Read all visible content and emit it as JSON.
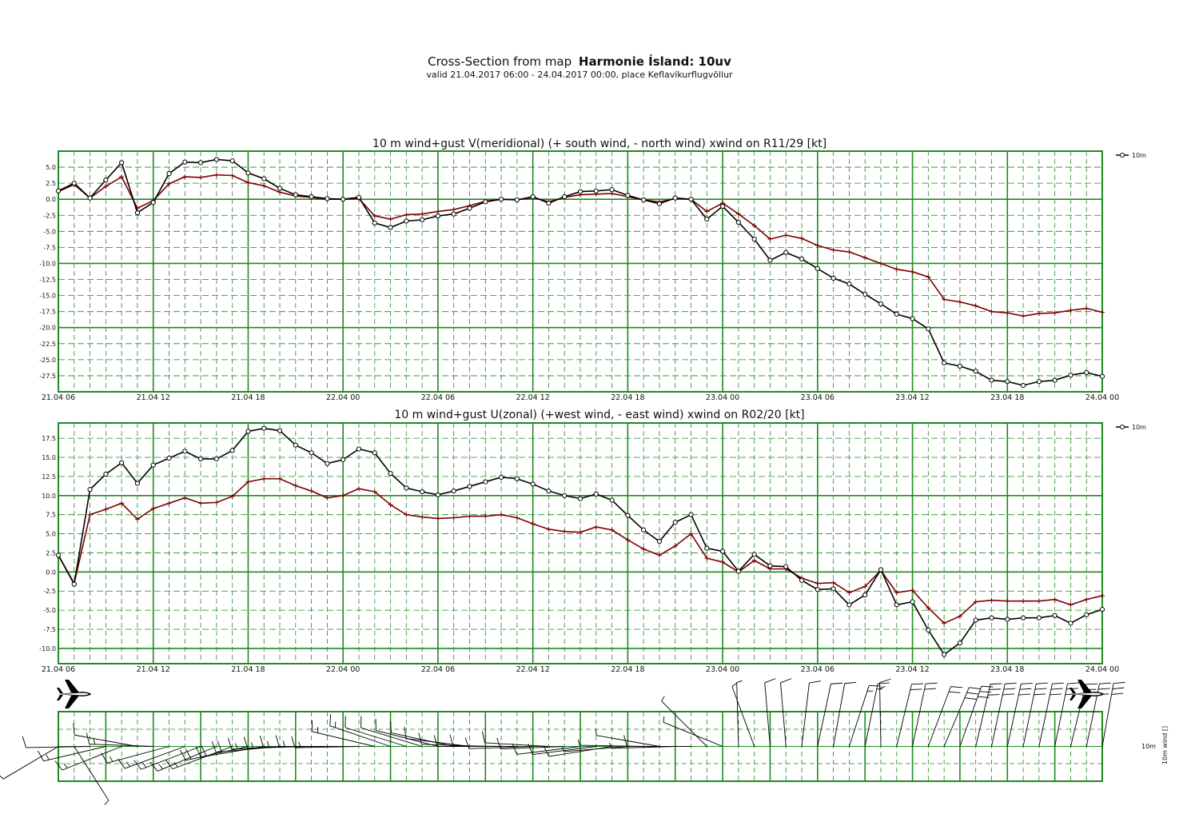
{
  "header": {
    "title_prefix": "Cross-Section from map",
    "title_bold": "Harmonie Ísland:  10uv",
    "subtitle": "valid 21.04.2017 06:00 - 24.04.2017 00:00, place Keflavíkurflugvöllur"
  },
  "colors": {
    "grid": "#1f8a1f",
    "wind": "#000000",
    "gust": "#7a0000"
  },
  "x_ticks": [
    "21.04 06",
    "21.04 12",
    "21.04 18",
    "22.04 00",
    "22.04 06",
    "22.04 12",
    "22.04 18",
    "23.04 00",
    "23.04 06",
    "23.04 12",
    "23.04 18",
    "24.04 00"
  ],
  "chart_data": [
    {
      "type": "line",
      "title": "10 m wind+gust V(meridional) (+ south wind, - north wind) xwind on R11/29 [kt]",
      "x_range_hours": [
        0,
        66
      ],
      "ylim": [
        -30,
        7.5
      ],
      "y_ticks": [
        5.0,
        2.5,
        0.0,
        -2.5,
        -5.0,
        -7.5,
        -10.0,
        -12.5,
        -15.0,
        -17.5,
        -20.0,
        -22.5,
        -25.0,
        -27.5
      ],
      "y_tick_labels": [
        "5.0",
        "2.5",
        "0.0",
        "-2.5",
        "-5.0",
        "-7.5",
        "-10.0",
        "-12.5",
        "-15.0",
        "-17.5",
        "-20.0",
        "-22.5",
        "-25.0",
        "-27.5"
      ],
      "legend": "10m",
      "series": [
        {
          "values": [
            1.3,
            2.5,
            0.2,
            3.0,
            5.7,
            -2.1,
            -0.5,
            4.0,
            5.8,
            5.7,
            6.2,
            6.0,
            4.1,
            3.2,
            1.7,
            0.7,
            0.4,
            0.1,
            0.0,
            0.3,
            -3.7,
            -4.4,
            -3.4,
            -3.2,
            -2.6,
            -2.3,
            -1.4,
            -0.4,
            0.0,
            -0.1,
            0.4,
            -0.6,
            0.4,
            1.2,
            1.3,
            1.5,
            0.6,
            -0.1,
            -0.7,
            0.2,
            0.0,
            -3.1,
            -1.1,
            -3.6,
            -6.2,
            -9.5,
            -8.3,
            -9.3,
            -10.8,
            -12.3,
            -13.2,
            -14.8,
            -16.3,
            -17.9,
            -18.6,
            -20.2,
            -25.5,
            -26.0,
            -26.8,
            -28.2,
            -28.4,
            -29.0,
            -28.4,
            -28.2,
            -27.4,
            -27.0,
            -27.6
          ]
        },
        {
          "values": [
            1.2,
            2.3,
            0.2,
            2.0,
            3.5,
            -1.4,
            -0.2,
            2.4,
            3.5,
            3.4,
            3.8,
            3.7,
            2.6,
            2.1,
            1.1,
            0.5,
            0.3,
            0.0,
            0.0,
            0.1,
            -2.6,
            -3.1,
            -2.4,
            -2.3,
            -1.9,
            -1.6,
            -1.0,
            -0.3,
            0.0,
            -0.1,
            0.3,
            -0.4,
            0.3,
            0.7,
            0.8,
            0.9,
            0.4,
            -0.1,
            -0.4,
            0.1,
            0.0,
            -1.9,
            -0.6,
            -2.3,
            -4.1,
            -6.2,
            -5.6,
            -6.1,
            -7.2,
            -7.9,
            -8.2,
            -9.1,
            -10.0,
            -10.9,
            -11.3,
            -12.1,
            -15.6,
            -16.0,
            -16.6,
            -17.5,
            -17.7,
            -18.2,
            -17.8,
            -17.7,
            -17.3,
            -17.0,
            -17.6
          ]
        }
      ]
    },
    {
      "type": "line",
      "title": "10 m wind+gust U(zonal) (+west wind, - east wind) xwind on R02/20 [kt]",
      "x_range_hours": [
        0,
        66
      ],
      "ylim": [
        -12,
        19.5
      ],
      "y_ticks": [
        17.5,
        15.0,
        12.5,
        10.0,
        7.5,
        5.0,
        2.5,
        0.0,
        -2.5,
        -5.0,
        -7.5,
        -10.0
      ],
      "y_tick_labels": [
        "17.5",
        "15.0",
        "12.5",
        "10.0",
        "7.5",
        "5.0",
        "2.5",
        "0.0",
        "-2.5",
        "-5.0",
        "-7.5",
        "-10.0"
      ],
      "legend": "10m",
      "series": [
        {
          "values": [
            2.2,
            -1.6,
            10.8,
            12.8,
            14.3,
            11.6,
            14.0,
            14.9,
            15.8,
            14.8,
            14.8,
            15.9,
            18.4,
            18.8,
            18.5,
            16.6,
            15.6,
            14.2,
            14.7,
            16.1,
            15.6,
            12.9,
            11.0,
            10.5,
            10.1,
            10.6,
            11.2,
            11.8,
            12.4,
            12.2,
            11.5,
            10.6,
            10.0,
            9.6,
            10.2,
            9.4,
            7.4,
            5.5,
            4.0,
            6.5,
            7.5,
            3.1,
            2.7,
            0.1,
            2.3,
            0.8,
            0.7,
            -1.1,
            -2.3,
            -2.2,
            -4.3,
            -3.0,
            0.3,
            -4.3,
            -3.9,
            -7.6,
            -10.8,
            -9.3,
            -6.3,
            -6.0,
            -6.2,
            -6.0,
            -6.0,
            -5.7,
            -6.7,
            -5.6,
            -4.9
          ]
        },
        {
          "values": [
            2.2,
            -1.5,
            7.5,
            8.2,
            9.0,
            6.9,
            8.3,
            9.0,
            9.7,
            9.0,
            9.1,
            9.9,
            11.8,
            12.2,
            12.2,
            11.3,
            10.6,
            9.7,
            10.0,
            10.9,
            10.5,
            8.8,
            7.5,
            7.2,
            7.0,
            7.1,
            7.3,
            7.3,
            7.5,
            7.1,
            6.3,
            5.6,
            5.3,
            5.2,
            5.9,
            5.5,
            4.2,
            3.0,
            2.2,
            3.4,
            5.0,
            1.8,
            1.3,
            0.0,
            1.5,
            0.4,
            0.4,
            -0.8,
            -1.5,
            -1.4,
            -2.7,
            -1.9,
            0.2,
            -2.7,
            -2.4,
            -4.7,
            -6.7,
            -5.8,
            -3.9,
            -3.7,
            -3.8,
            -3.8,
            -3.8,
            -3.6,
            -4.3,
            -3.6,
            -3.1
          ]
        }
      ]
    }
  ],
  "barbs": {
    "label": "10m wind []",
    "legend": "10m"
  }
}
